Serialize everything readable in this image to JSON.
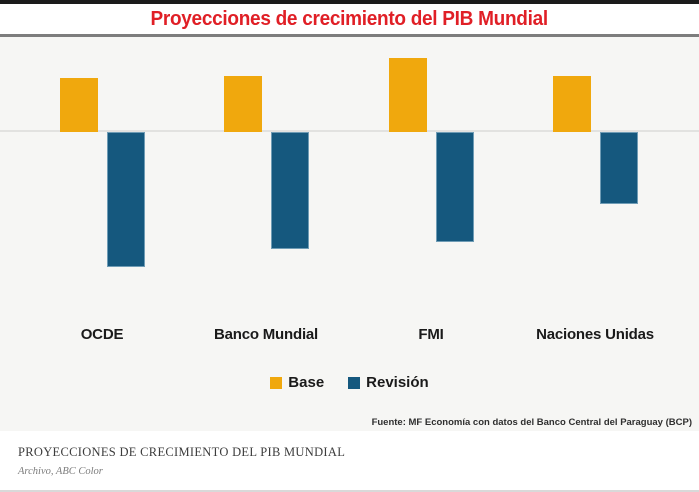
{
  "header": {
    "title": "Proyecciones de crecimiento del PIB Mundial"
  },
  "chart_data": {
    "type": "bar",
    "title": "Proyecciones de crecimiento del PIB Mundial",
    "categories": [
      "OCDE",
      "Banco Mundial",
      "FMI",
      "Naciones Unidas"
    ],
    "series": [
      {
        "name": "Base",
        "color": "#f0a80d",
        "values": [
          2.4,
          2.5,
          3.3,
          2.5
        ]
      },
      {
        "name": "Revisión",
        "color": "#15587e",
        "values": [
          -6.0,
          -5.2,
          -4.9,
          -3.2
        ]
      }
    ],
    "unit": "percent",
    "ylim": [
      -6.5,
      3.5
    ],
    "grid": false,
    "axis_tick_labels_visible": false,
    "legend_position": "bottom-center",
    "source": "Fuente: MF Economía con datos del Banco Central del Paraguay (BCP)"
  },
  "footer": {
    "caption": "PROYECCIONES DE CRECIMIENTO DEL PIB MUNDIAL",
    "credit": "Archivo, ABC Color"
  },
  "colors": {
    "title_red": "#e01f26",
    "chart_background": "#f6f6f4",
    "zero_line": "#e2e2e0",
    "top_bar": "#1b1b1b",
    "divider": "#7d7d7d",
    "base_bar": "#f0a80d",
    "revision_bar": "#15587e",
    "revision_bar_border": "#6f9cb5"
  }
}
